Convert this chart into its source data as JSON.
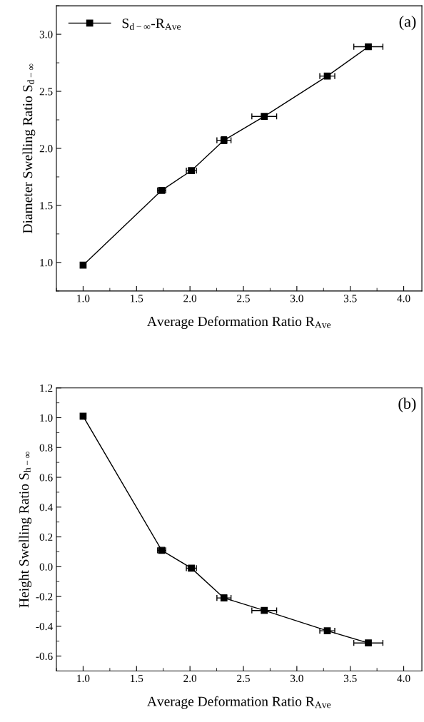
{
  "chart_data": [
    {
      "type": "line",
      "xlabel": "Average Deformation Ratio R$_{Ave}$",
      "ylabel": "Diameter Swelling Ratio S$_{d−∞}$",
      "annotations": [
        "(a)"
      ],
      "x": [
        1.0,
        1.735,
        2.013,
        2.318,
        2.695,
        3.285,
        3.669
      ],
      "series": [
        {
          "name": "S$_{d−∞}$-R$_{Ave}$",
          "color": "#000000",
          "values": [
            0.976,
            1.632,
            1.805,
            2.071,
            2.28,
            2.634,
            2.891
          ],
          "errors": [
            null,
            0.01,
            0.01,
            0.03,
            0.02,
            0.01,
            0.01
          ],
          "xerrors": [
            null,
            0.038,
            0.047,
            0.066,
            0.116,
            0.07,
            0.136
          ]
        }
      ],
      "xlim": [
        0.75,
        4.17
      ],
      "xticks": [
        {
          "value": 1,
          "label": "1.0"
        },
        1.5,
        {
          "value": 2,
          "label": "2.0"
        },
        2.5,
        {
          "value": 3,
          "label": "3.0"
        },
        3.5,
        {
          "value": 4,
          "label": "4.0"
        }
      ],
      "ylim": [
        0.75,
        3.25
      ],
      "yticks": [
        {
          "value": 1,
          "label": "1.0"
        },
        1.5,
        {
          "value": 2,
          "label": "2.0"
        },
        2.5,
        {
          "value": 3,
          "label": "3.0"
        }
      ],
      "marker": "square",
      "line_style": "solid",
      "grid": false,
      "legend": "top left"
    },
    {
      "type": "line",
      "xlabel": "Average Deformation Ratio R$_{Ave}$",
      "ylabel": "Height Swelling Ratio S$_{h−∞}$",
      "annotations": [
        "(b)"
      ],
      "x": [
        1.0,
        1.735,
        2.013,
        2.318,
        2.695,
        3.285,
        3.669
      ],
      "series": [
        {
          "color": "#000000",
          "values": [
            1.01,
            0.11,
            -0.01,
            -0.21,
            -0.294,
            -0.43,
            -0.512
          ],
          "errors": [
            null,
            0.01,
            0.01,
            0.02,
            0.01,
            0.01,
            0.01
          ],
          "xerrors": [
            null,
            0.038,
            0.047,
            0.066,
            0.116,
            0.07,
            0.136
          ]
        }
      ],
      "xlim": [
        0.75,
        4.17
      ],
      "xticks": [
        {
          "value": 1,
          "label": "1.0"
        },
        1.5,
        {
          "value": 2,
          "label": "2.0"
        },
        2.5,
        {
          "value": 3,
          "label": "3.0"
        },
        3.5,
        {
          "value": 4,
          "label": "4.0"
        }
      ],
      "ylim": [
        -0.7,
        1.2
      ],
      "yticks": [
        -0.6,
        -0.4,
        -0.2,
        {
          "value": 0,
          "label": "0.0"
        },
        0.2,
        0.4,
        0.6,
        0.8,
        {
          "value": 1,
          "label": "1.0"
        },
        1.2
      ],
      "marker": "square",
      "line_style": "solid",
      "grid": false,
      "legend": false
    }
  ]
}
